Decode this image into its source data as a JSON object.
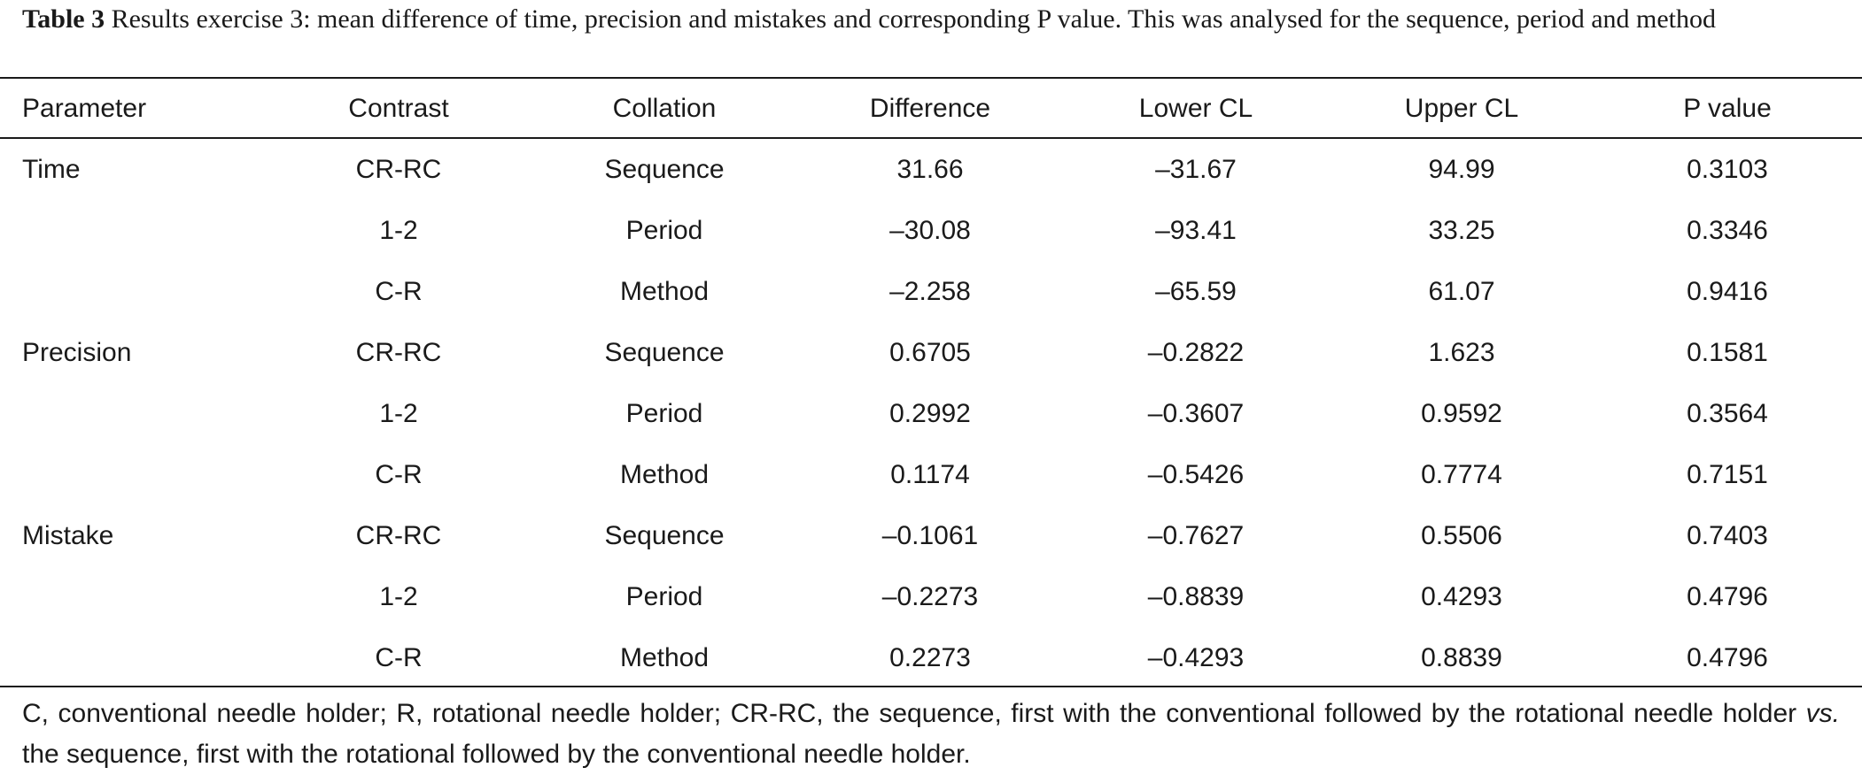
{
  "caption": {
    "label": "Table 3",
    "text": "Results exercise 3: mean difference of time, precision and mistakes and corresponding P value. This was analysed for the sequence, period and method"
  },
  "table": {
    "headers": [
      "Parameter",
      "Contrast",
      "Collation",
      "Difference",
      "Lower CL",
      "Upper CL",
      "P value"
    ],
    "rows": [
      {
        "parameter": "Time",
        "contrast": "CR-RC",
        "collation": "Sequence",
        "difference": "31.66",
        "lower": "–31.67",
        "upper": "94.99",
        "p": "0.3103"
      },
      {
        "parameter": "",
        "contrast": "1-2",
        "collation": "Period",
        "difference": "–30.08",
        "lower": "–93.41",
        "upper": "33.25",
        "p": "0.3346"
      },
      {
        "parameter": "",
        "contrast": "C-R",
        "collation": "Method",
        "difference": "–2.258",
        "lower": "–65.59",
        "upper": "61.07",
        "p": "0.9416"
      },
      {
        "parameter": "Precision",
        "contrast": "CR-RC",
        "collation": "Sequence",
        "difference": "0.6705",
        "lower": "–0.2822",
        "upper": "1.623",
        "p": "0.1581"
      },
      {
        "parameter": "",
        "contrast": "1-2",
        "collation": "Period",
        "difference": "0.2992",
        "lower": "–0.3607",
        "upper": "0.9592",
        "p": "0.3564"
      },
      {
        "parameter": "",
        "contrast": "C-R",
        "collation": "Method",
        "difference": "0.1174",
        "lower": "–0.5426",
        "upper": "0.7774",
        "p": "0.7151"
      },
      {
        "parameter": "Mistake",
        "contrast": "CR-RC",
        "collation": "Sequence",
        "difference": "–0.1061",
        "lower": "–0.7627",
        "upper": "0.5506",
        "p": "0.7403"
      },
      {
        "parameter": "",
        "contrast": "1-2",
        "collation": "Period",
        "difference": "–0.2273",
        "lower": "–0.8839",
        "upper": "0.4293",
        "p": "0.4796"
      },
      {
        "parameter": "",
        "contrast": "C-R",
        "collation": "Method",
        "difference": "0.2273",
        "lower": "–0.4293",
        "upper": "0.8839",
        "p": "0.4796"
      }
    ]
  },
  "footnote": {
    "part1": "C, conventional needle holder; R, rotational needle holder; CR-RC, the sequence, first with the conventional followed by the rotational needle holder ",
    "vs": "vs.",
    "part2": " the sequence, first with the rotational followed by the conventional needle holder."
  }
}
